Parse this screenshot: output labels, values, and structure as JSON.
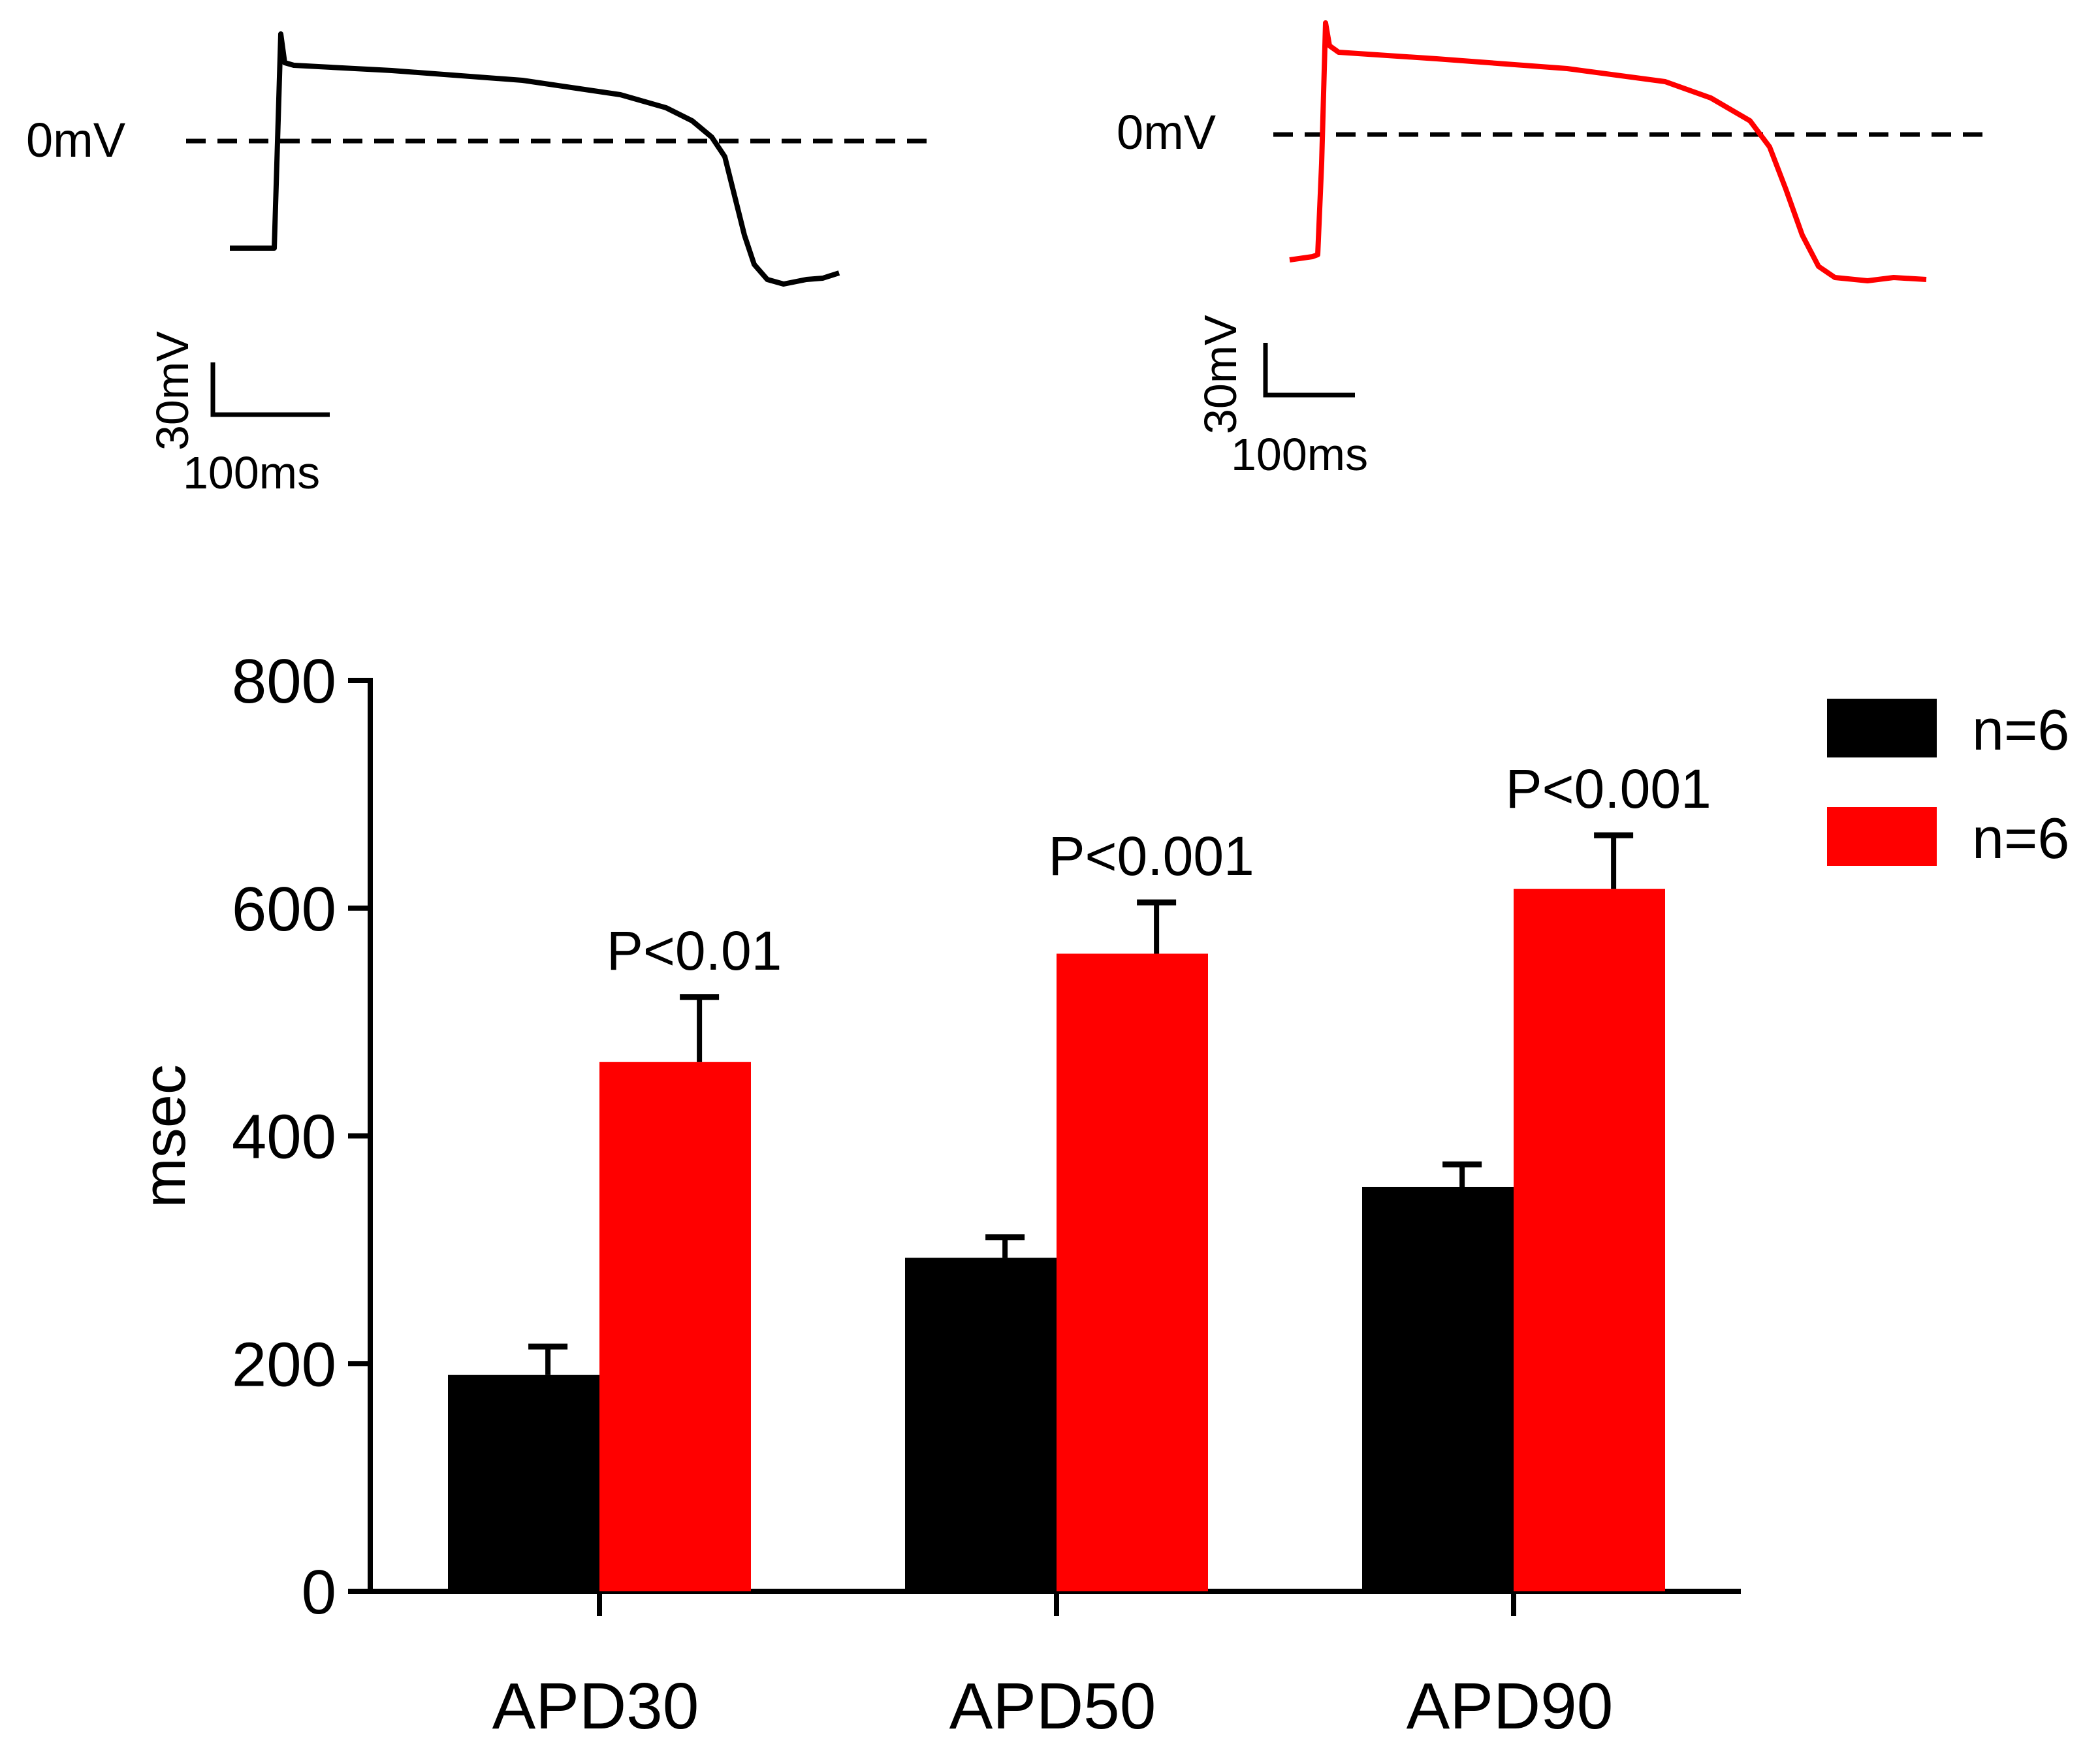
{
  "colors": {
    "group_1": "#000000",
    "group_2": "#ff0000",
    "axis": "#000000"
  },
  "traces": {
    "zero_label": "0mV",
    "scale_voltage_label": "30mV",
    "scale_time_label": "100ms"
  },
  "chart_data": {
    "type": "bar",
    "categories": [
      "APD30",
      "APD50",
      "APD90"
    ],
    "ylabel": "msec",
    "xlabel": "",
    "ylim": [
      0,
      800
    ],
    "yticks": [
      "0",
      "200",
      "400",
      "600",
      "800"
    ],
    "legend_position": "top-right",
    "series": [
      {
        "name": "n=6",
        "color": "#000000",
        "values": [
          190,
          293,
          355
        ],
        "errors": [
          25,
          18,
          20
        ]
      },
      {
        "name": "n=6",
        "color": "#ff0000",
        "values": [
          465,
          560,
          617
        ],
        "errors": [
          57,
          45,
          47
        ]
      }
    ],
    "annotations": [
      "P<0.01",
      "P<0.001",
      "P<0.001"
    ]
  }
}
